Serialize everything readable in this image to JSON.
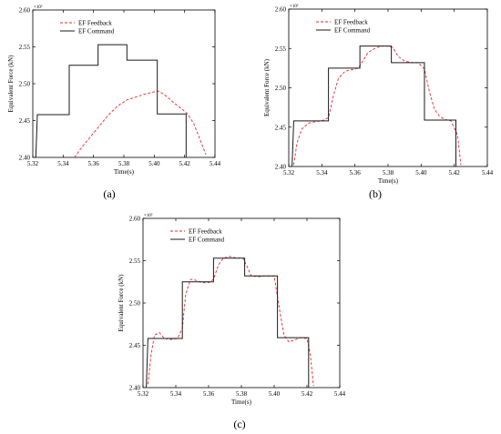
{
  "colors": {
    "feedback": "#e8262a",
    "command": "#1a1a1a",
    "axis": "#000000"
  },
  "chart_data": [
    {
      "type": "line",
      "panel_label": "(a)",
      "xlabel": "Time(s)",
      "ylabel": "Equivalent Force  (kN)",
      "axis_multiplier": "×10³",
      "xlim": [
        5.32,
        5.44
      ],
      "ylim": [
        2.4,
        2.6
      ],
      "xticks": [
        "5.32",
        "5.34",
        "5.36",
        "5.38",
        "5.40",
        "5.42",
        "5.44"
      ],
      "yticks": [
        "2.40",
        "2.45",
        "2.50",
        "2.55",
        "2.60"
      ],
      "legend_position": "top-left",
      "series": [
        {
          "name": "EF Feedback",
          "style": "dashed",
          "x": [
            5.3475,
            5.352,
            5.358,
            5.364,
            5.37,
            5.376,
            5.382,
            5.388,
            5.394,
            5.4,
            5.403,
            5.408,
            5.413,
            5.418,
            5.422,
            5.426,
            5.43,
            5.434
          ],
          "y": [
            2.4,
            2.413,
            2.428,
            2.443,
            2.458,
            2.47,
            2.478,
            2.482,
            2.486,
            2.489,
            2.49,
            2.483,
            2.474,
            2.466,
            2.459,
            2.446,
            2.425,
            2.404
          ]
        },
        {
          "name": "EF Command",
          "style": "solid",
          "x": [
            5.322,
            5.323,
            5.344,
            5.344,
            5.363,
            5.363,
            5.382,
            5.382,
            5.402,
            5.402,
            5.421,
            5.421
          ],
          "y": [
            2.4,
            2.458,
            2.458,
            2.525,
            2.525,
            2.553,
            2.553,
            2.532,
            2.532,
            2.459,
            2.459,
            2.4
          ]
        }
      ]
    },
    {
      "type": "line",
      "panel_label": "(b)",
      "xlabel": "Time(s)",
      "ylabel": "Equivalent Force  (kN)",
      "axis_multiplier": "×10³",
      "xlim": [
        5.32,
        5.44
      ],
      "ylim": [
        2.4,
        2.6
      ],
      "xticks": [
        "5.32",
        "5.34",
        "5.36",
        "5.38",
        "5.40",
        "5.42",
        "5.44"
      ],
      "yticks": [
        "2.40",
        "2.45",
        "2.50",
        "2.55",
        "2.60"
      ],
      "legend_position": "top-left",
      "series": [
        {
          "name": "EF Feedback",
          "style": "dashed",
          "x": [
            5.323,
            5.325,
            5.328,
            5.332,
            5.336,
            5.34,
            5.344,
            5.347,
            5.35,
            5.354,
            5.358,
            5.362,
            5.365,
            5.368,
            5.372,
            5.376,
            5.38,
            5.383,
            5.386,
            5.39,
            5.394,
            5.398,
            5.402,
            5.405,
            5.408,
            5.411,
            5.414,
            5.418,
            5.422,
            5.424
          ],
          "y": [
            2.402,
            2.43,
            2.448,
            2.455,
            2.457,
            2.458,
            2.462,
            2.49,
            2.512,
            2.521,
            2.523,
            2.525,
            2.535,
            2.545,
            2.55,
            2.553,
            2.553,
            2.551,
            2.54,
            2.534,
            2.532,
            2.532,
            2.524,
            2.495,
            2.473,
            2.464,
            2.46,
            2.458,
            2.44,
            2.402
          ]
        },
        {
          "name": "EF Command",
          "style": "solid",
          "x": [
            5.322,
            5.323,
            5.344,
            5.344,
            5.363,
            5.363,
            5.382,
            5.382,
            5.402,
            5.402,
            5.421,
            5.421
          ],
          "y": [
            2.4,
            2.458,
            2.458,
            2.525,
            2.525,
            2.553,
            2.553,
            2.532,
            2.532,
            2.459,
            2.459,
            2.4
          ]
        }
      ]
    },
    {
      "type": "line",
      "panel_label": "(c)",
      "xlabel": "Time(s)",
      "ylabel": "Equivalent Force  (kN)",
      "axis_multiplier": "×10³",
      "xlim": [
        5.32,
        5.44
      ],
      "ylim": [
        2.4,
        2.6
      ],
      "xticks": [
        "5.32",
        "5.34",
        "5.36",
        "5.38",
        "5.40",
        "5.42",
        "5.44"
      ],
      "yticks": [
        "2.40",
        "2.45",
        "2.50",
        "2.55",
        "2.60"
      ],
      "legend_position": "top-left",
      "series": [
        {
          "name": "EF Feedback",
          "style": "dashed",
          "x": [
            5.323,
            5.325,
            5.327,
            5.33,
            5.333,
            5.337,
            5.341,
            5.344,
            5.346,
            5.349,
            5.352,
            5.356,
            5.36,
            5.363,
            5.366,
            5.369,
            5.373,
            5.377,
            5.381,
            5.383,
            5.386,
            5.39,
            5.395,
            5.4,
            5.403,
            5.406,
            5.409,
            5.412,
            5.416,
            5.42,
            5.422,
            5.424
          ],
          "y": [
            2.404,
            2.44,
            2.462,
            2.465,
            2.458,
            2.457,
            2.458,
            2.47,
            2.51,
            2.528,
            2.527,
            2.524,
            2.524,
            2.528,
            2.545,
            2.553,
            2.555,
            2.553,
            2.553,
            2.545,
            2.532,
            2.531,
            2.532,
            2.532,
            2.495,
            2.462,
            2.454,
            2.456,
            2.459,
            2.458,
            2.44,
            2.402
          ]
        },
        {
          "name": "EF Command",
          "style": "solid",
          "x": [
            5.322,
            5.323,
            5.344,
            5.344,
            5.363,
            5.363,
            5.382,
            5.382,
            5.402,
            5.402,
            5.421,
            5.421
          ],
          "y": [
            2.4,
            2.458,
            2.458,
            2.525,
            2.525,
            2.553,
            2.553,
            2.532,
            2.532,
            2.459,
            2.459,
            2.4
          ]
        }
      ]
    }
  ]
}
